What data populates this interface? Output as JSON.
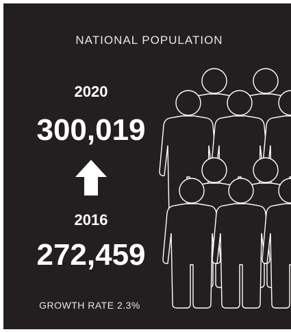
{
  "title": "NATIONAL POPULATION",
  "stats": [
    {
      "year": "2020",
      "population": "300,019"
    },
    {
      "year": "2016",
      "population": "272,459"
    }
  ],
  "footer": "GROWTH RATE 2.3%"
}
